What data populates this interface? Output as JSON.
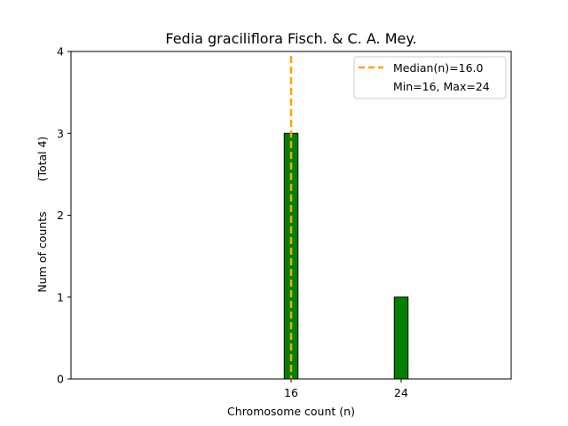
{
  "chart_data": {
    "type": "bar",
    "title": "Fedia graciliflora Fisch. & C. A. Mey.",
    "xlabel": "Chromosome count (n)",
    "ylabel": "Num of counts",
    "ylabel_note": "(Total 4)",
    "x_ticks": [
      16,
      24
    ],
    "y_ticks": [
      0,
      1,
      2,
      3,
      4
    ],
    "xlim": [
      0,
      32
    ],
    "ylim": [
      0,
      4
    ],
    "bar_width": 1,
    "bars": [
      {
        "x": 16,
        "count": 3
      },
      {
        "x": 24,
        "count": 1
      }
    ],
    "bar_color": "#008000",
    "median_line": {
      "x": 16.0,
      "color": "#FFA500",
      "style": "dashed"
    },
    "baseline_end": 27,
    "legend": {
      "position": "top-right",
      "entries": [
        "Median(n)=16.0",
        "Min=16, Max=24"
      ]
    },
    "grid": false
  }
}
